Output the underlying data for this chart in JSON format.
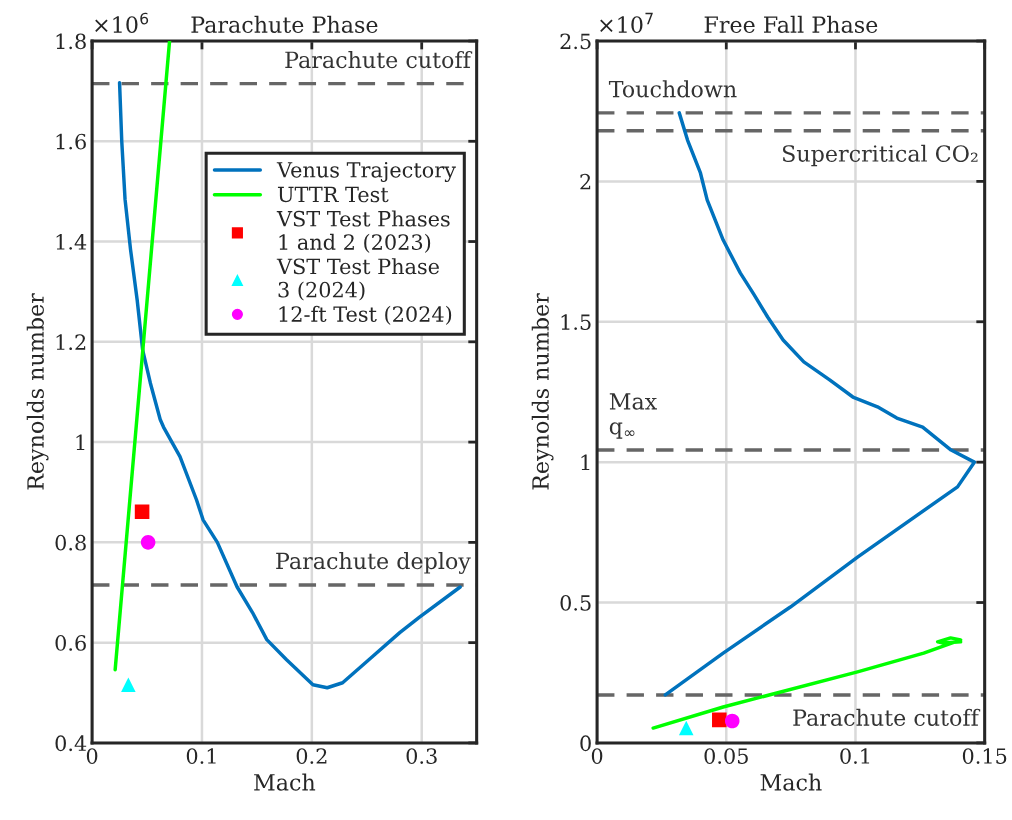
{
  "chart_data": [
    {
      "type": "line",
      "title": "Parachute Phase",
      "xlabel": "Mach",
      "ylabel": "Reynolds number",
      "annotations": [
        "×10$^{6}$"
      ],
      "xlim": [
        0,
        0.35
      ],
      "ylim": [
        0.4,
        1.8
      ],
      "xticks": [
        0,
        0.1,
        0.2,
        0.3
      ],
      "yticks": [
        0.4,
        0.6,
        0.8,
        1,
        1.2,
        1.4,
        1.6,
        1.8
      ],
      "grid": true,
      "legend": "right",
      "series": [
        {
          "name": "Venus Trajectory",
          "marker": "none",
          "color": "#0072bd",
          "x": [
            0.025,
            0.027,
            0.03,
            0.035,
            0.041,
            0.046,
            0.053,
            0.062,
            0.065,
            0.08,
            0.095,
            0.101,
            0.114,
            0.132,
            0.146,
            0.159,
            0.177,
            0.201,
            0.214,
            0.228,
            0.255,
            0.28,
            0.298,
            0.335
          ],
          "values": [
            1.717,
            1.6,
            1.484,
            1.384,
            1.284,
            1.184,
            1.118,
            1.045,
            1.03,
            0.971,
            0.885,
            0.845,
            0.8,
            0.711,
            0.66,
            0.606,
            0.566,
            0.516,
            0.51,
            0.52,
            0.572,
            0.62,
            0.651,
            0.711
          ]
        },
        {
          "name": "UTTR Test",
          "marker": "none",
          "color": "#00ff00",
          "x": [
            0.021,
            0.0705
          ],
          "values": [
            0.546,
            1.8
          ]
        },
        {
          "name": "VST Test Phases\n1 and 2 (2023)",
          "type": "scatter",
          "marker": "square",
          "color": "#ff0000",
          "x": [
            0.0455
          ],
          "values": [
            0.861
          ]
        },
        {
          "name": "VST Test Phase\n3 (2024)",
          "type": "scatter",
          "marker": "triangle",
          "color": "#00ffff",
          "x": [
            0.033
          ],
          "values": [
            0.516
          ]
        },
        {
          "name": "12-ft Test (2024)",
          "type": "scatter",
          "marker": "circle",
          "color": "#ff00ff",
          "x": [
            0.051
          ],
          "values": [
            0.8
          ]
        }
      ],
      "ref_lines": [
        {
          "axis": "y",
          "value": 1.715,
          "label": "Parachute cutoff",
          "color": "#666666",
          "line_style": "dashed"
        },
        {
          "axis": "y",
          "value": 0.715,
          "label": "Parachute deploy",
          "color": "#666666",
          "line_style": "dashed"
        }
      ]
    },
    {
      "type": "line",
      "title": "Free Fall Phase",
      "xlabel": "Mach",
      "ylabel": "Reynolds number",
      "annotations": [
        "×10$^{7}$"
      ],
      "xlim": [
        0,
        0.15
      ],
      "ylim": [
        0,
        2.5
      ],
      "xticks": [
        0,
        0.05,
        0.1,
        0.15
      ],
      "yticks": [
        0,
        0.5,
        1,
        1.5,
        2,
        2.5
      ],
      "grid": true,
      "legend": false,
      "series": [
        {
          "marker": "none",
          "color": "#0072bd",
          "x": [
            0.0318,
            0.035,
            0.04,
            0.0426,
            0.0488,
            0.0554,
            0.0605,
            0.066,
            0.072,
            0.08,
            0.09,
            0.099,
            0.1085,
            0.116,
            0.126,
            0.137,
            0.146,
            0.1395,
            0.1008,
            0.0748,
            0.0488,
            0.0264
          ],
          "values": [
            2.244,
            2.147,
            2.03,
            1.934,
            1.791,
            1.674,
            1.6,
            1.517,
            1.435,
            1.357,
            1.293,
            1.232,
            1.197,
            1.157,
            1.125,
            1.043,
            1.0,
            0.912,
            0.662,
            0.484,
            0.32,
            0.171
          ]
        },
        {
          "marker": "none",
          "color": "#00ff00",
          "x": [
            0.0217,
            0.0488,
            0.1008,
            0.1264,
            0.1407,
            0.1368,
            0.1318,
            0.134,
            0.1407
          ],
          "values": [
            0.053,
            0.128,
            0.253,
            0.32,
            0.367,
            0.374,
            0.36,
            0.356,
            0.36
          ]
        },
        {
          "type": "scatter",
          "marker": "square",
          "color": "#ff0000",
          "x": [
            0.0473
          ],
          "values": [
            0.082
          ]
        },
        {
          "type": "scatter",
          "marker": "triangle",
          "color": "#00ffff",
          "x": [
            0.0345
          ],
          "values": [
            0.053
          ]
        },
        {
          "type": "scatter",
          "marker": "circle",
          "color": "#ff00ff",
          "x": [
            0.0523
          ],
          "values": [
            0.078
          ]
        }
      ],
      "ref_lines": [
        {
          "axis": "y",
          "value": 2.244,
          "label": "Touchdown",
          "color": "#666666",
          "line_style": "dashed"
        },
        {
          "axis": "y",
          "value": 2.18,
          "label": "Supercritical CO₂",
          "color": "#666666",
          "line_style": "dashed"
        },
        {
          "axis": "y",
          "value": 1.043,
          "label": "Max\nq$_{∞}$",
          "color": "#666666",
          "line_style": "dashed"
        },
        {
          "axis": "y",
          "value": 0.171,
          "label": "Parachute cutoff",
          "color": "#666666",
          "line_style": "dashed"
        }
      ]
    }
  ]
}
